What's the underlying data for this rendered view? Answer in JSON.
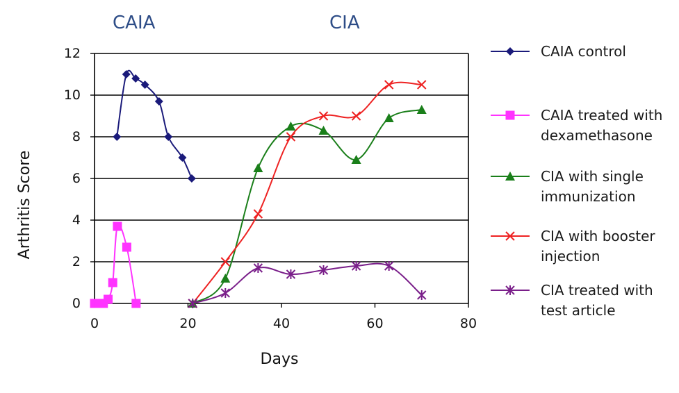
{
  "chart_data": {
    "type": "line",
    "group_labels": [
      "CAIA",
      "CIA"
    ],
    "xlabel": "Days",
    "ylabel": "Arthritis Score",
    "xlim": [
      0,
      80
    ],
    "ylim": [
      0,
      12
    ],
    "x_ticks": [
      0,
      20,
      40,
      60,
      80
    ],
    "y_ticks": [
      0,
      2,
      4,
      6,
      8,
      10,
      12
    ],
    "grid": "horizontal",
    "legend_position": "right",
    "series": [
      {
        "name": "CAIA control",
        "color": "#1a1a7a",
        "marker": "diamond",
        "x": [
          4.8,
          6.8,
          8.8,
          10.8,
          13.8,
          15.8,
          18.8,
          20.8
        ],
        "y": [
          8.0,
          11.0,
          10.8,
          10.5,
          9.7,
          8.0,
          7.0,
          6.0
        ]
      },
      {
        "name": "CAIA treated with\ndexamethasone",
        "color": "#ff33ff",
        "marker": "square",
        "x": [
          0,
          0.9,
          1.9,
          2.9,
          3.9,
          4.9,
          6.9,
          8.9
        ],
        "y": [
          0,
          0,
          0,
          0.2,
          1.0,
          3.7,
          2.7,
          0
        ]
      },
      {
        "name": "CIA with single\nimmunization",
        "color": "#1a7f1a",
        "marker": "triangle",
        "x": [
          21,
          28,
          35,
          42,
          49,
          56,
          63,
          70
        ],
        "y": [
          0,
          1.2,
          6.5,
          8.5,
          8.3,
          6.9,
          8.9,
          9.3
        ]
      },
      {
        "name": "CIA with booster\ninjection",
        "color": "#ee2222",
        "marker": "x",
        "x": [
          21,
          28,
          35,
          42,
          49,
          56,
          63,
          70
        ],
        "y": [
          0,
          2.0,
          4.3,
          8.0,
          9.0,
          9.0,
          10.5,
          10.5
        ]
      },
      {
        "name": "CIA treated with\n test article",
        "color": "#7a1f8a",
        "marker": "star",
        "x": [
          21,
          28,
          35,
          42,
          49,
          56,
          63,
          70
        ],
        "y": [
          0,
          0.5,
          1.7,
          1.4,
          1.6,
          1.8,
          1.8,
          0.4
        ]
      }
    ]
  }
}
